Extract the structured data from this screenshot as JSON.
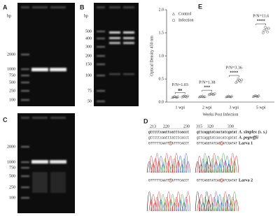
{
  "panel_a": {
    "label": "A",
    "unit": "bp",
    "ladder": [
      "2000",
      "1000",
      "750",
      "500",
      "250",
      "100"
    ]
  },
  "panel_b": {
    "label": "B",
    "unit": "bp",
    "ladder": [
      "500",
      "400",
      "300",
      "200",
      "150",
      "100",
      "75",
      "50"
    ]
  },
  "panel_c": {
    "label": "C",
    "ladder": [
      "2000",
      "1000",
      "750",
      "500",
      "250",
      "100"
    ]
  },
  "panel_d": {
    "label": "D",
    "positions": [
      "213",
      "220",
      "230",
      "315",
      "320",
      "330"
    ],
    "rows": [
      {
        "seq1": "gtttttcaattcatttcacct",
        "seq2": "gttcaggtatcactatcgatat",
        "name": "A. simplex (s. s.)"
      },
      {
        "seq1": "gtttttcaatttatttcacct",
        "seq2": "gttcaggtatcaccatcgatat",
        "name": "A. pegreffii"
      },
      {
        "seq1": "GTTTTTCAATTTATTTCACCT",
        "seq2": "GTTCAGGTATCACCATCGATAT",
        "name": "Larva 1"
      },
      {
        "seq1": "GTTTTTCAATTTATTTCACCT",
        "seq2": "GTTCAGGTATCACCATCGATAT",
        "name": "Larva 2"
      }
    ]
  },
  "chart_data": {
    "type": "scatter",
    "panel_label": "E",
    "y_label": "Optical Density 450 nm",
    "x_label": "Weeks Post Infection",
    "categories": [
      "1 wpi",
      "2 wpi",
      "3 wpi",
      "5 wpi"
    ],
    "ylim": [
      0,
      2.0
    ],
    "yticks": [
      {
        "value": 0,
        "label": "0.0"
      },
      {
        "value": 0.5,
        "label": "0.5"
      },
      {
        "value": 1.0,
        "label": "1.0"
      },
      {
        "value": 1.5,
        "label": "1.5"
      },
      {
        "value": 2.0,
        "label": "2.0"
      }
    ],
    "series": [
      {
        "name": "Control",
        "marker": "triangle",
        "color": "#555555",
        "values": [
          [
            0.1,
            0.11,
            0.12,
            0.11,
            0.1,
            0.12
          ],
          [
            0.11,
            0.12,
            0.12,
            0.13,
            0.11,
            0.12
          ],
          [
            0.11,
            0.12,
            0.13,
            0.12,
            0.11,
            0.13
          ],
          [
            0.12,
            0.13,
            0.14,
            0.13,
            0.12,
            0.14
          ]
        ]
      },
      {
        "name": "Infection",
        "marker": "circle",
        "color": "#555555",
        "values": [
          [
            0.11,
            0.12,
            0.13,
            0.12,
            0.11,
            0.13
          ],
          [
            0.16,
            0.17,
            0.18,
            0.17,
            0.16,
            0.18
          ],
          [
            0.42,
            0.45,
            0.5,
            0.47,
            0.44,
            0.48
          ],
          [
            1.5,
            1.55,
            1.62,
            1.58,
            1.52,
            1.6
          ]
        ]
      }
    ],
    "annotations": [
      {
        "ratio": "P/N=1.03",
        "sig": "ns"
      },
      {
        "ratio": "P/N=1.38",
        "sig": "***"
      },
      {
        "ratio": "P/N=3.36",
        "sig": "****"
      },
      {
        "ratio": "P/N=11.6",
        "sig": "****"
      }
    ]
  }
}
